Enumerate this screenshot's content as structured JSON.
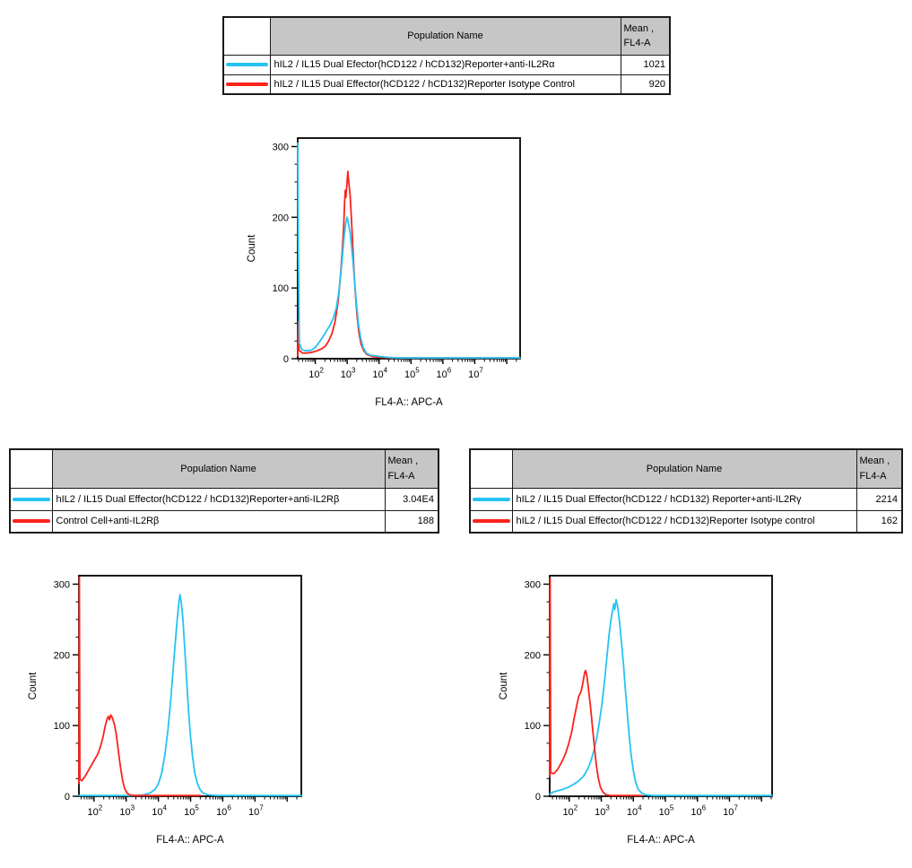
{
  "colors": {
    "cyan": "#25C3F3",
    "red": "#FA231B",
    "table_header_bg": "#C6C6C6",
    "border": "#1A1A1A",
    "axis": "#000000"
  },
  "tables": [
    {
      "id": "alpha",
      "header": {
        "name_col": "Population Name",
        "mean_line1": "Mean ,",
        "mean_line2": "FL4-A"
      },
      "rows": [
        {
          "color": "cyan",
          "name": "hIL2 / IL15 Dual Efector(hCD122 / hCD132)Reporter+anti-IL2Rα",
          "mean": "1021"
        },
        {
          "color": "red",
          "name": "hIL2 / IL15 Dual Effector(hCD122 / hCD132)Reporter Isotype Control",
          "mean": "920"
        }
      ]
    },
    {
      "id": "beta",
      "header": {
        "name_col": "Population Name",
        "mean_line1": "Mean ,",
        "mean_line2": "FL4-A"
      },
      "rows": [
        {
          "color": "cyan",
          "name": "hIL2 / IL15 Dual Effector(hCD122 / hCD132)Reporter+anti-IL2Rβ",
          "mean": "3.04E4"
        },
        {
          "color": "red",
          "name": "Control Cell+anti-IL2Rβ",
          "mean": "188"
        }
      ]
    },
    {
      "id": "gamma",
      "header": {
        "name_col": "Population Name",
        "mean_line1": "Mean ,",
        "mean_line2": "FL4-A"
      },
      "rows": [
        {
          "color": "cyan",
          "name": "hIL2 / IL15 Dual Effector(hCD122 / hCD132) Reporter+anti-IL2Rγ",
          "mean": "2214"
        },
        {
          "color": "red",
          "name": "hIL2 / IL15 Dual Effector(hCD122 / hCD132)Reporter Isotype control",
          "mean": "162"
        }
      ]
    }
  ],
  "chart_data": [
    {
      "id": "histogram-anti-IL2Ra",
      "type": "line",
      "title": "",
      "xlabel": "FL4-A:: APC-A",
      "ylabel": "Count",
      "x_scale": "log10",
      "xlim_log10": [
        1.45,
        8.42
      ],
      "ylim": [
        0,
        312
      ],
      "y_ticks": [
        0,
        100,
        200,
        300
      ],
      "y_minor_step": 25,
      "x_labeled_decades": [
        2,
        3,
        4,
        5,
        6,
        7
      ],
      "grid": false,
      "legend_position": "none",
      "series": [
        {
          "name": "hIL2 / IL15 Dual Effector(hCD122 / hCD132)Reporter Isotype Control",
          "color": "red",
          "mean_fl4a": "920",
          "points_log10x_count": [
            [
              1.45,
              4
            ],
            [
              1.47,
              52
            ],
            [
              1.49,
              12
            ],
            [
              1.6,
              8
            ],
            [
              1.75,
              8
            ],
            [
              1.9,
              9
            ],
            [
              2.05,
              11
            ],
            [
              2.2,
              14
            ],
            [
              2.32,
              18
            ],
            [
              2.42,
              25
            ],
            [
              2.52,
              35
            ],
            [
              2.62,
              52
            ],
            [
              2.72,
              82
            ],
            [
              2.79,
              118
            ],
            [
              2.85,
              155
            ],
            [
              2.89,
              185
            ],
            [
              2.92,
              222
            ],
            [
              2.94,
              238
            ],
            [
              2.96,
              228
            ],
            [
              2.99,
              246
            ],
            [
              3.02,
              265
            ],
            [
              3.05,
              250
            ],
            [
              3.09,
              232
            ],
            [
              3.13,
              200
            ],
            [
              3.17,
              165
            ],
            [
              3.21,
              128
            ],
            [
              3.26,
              90
            ],
            [
              3.31,
              60
            ],
            [
              3.37,
              36
            ],
            [
              3.44,
              20
            ],
            [
              3.52,
              11
            ],
            [
              3.62,
              6
            ],
            [
              3.78,
              3
            ],
            [
              4.0,
              2
            ],
            [
              4.4,
              1
            ],
            [
              8.42,
              1
            ]
          ]
        },
        {
          "name": "hIL2 / IL15 Dual Efector(hCD122 / hCD132)Reporter+anti-IL2Rα",
          "color": "cyan",
          "mean_fl4a": "1021",
          "points_log10x_count": [
            [
              1.45,
              305
            ],
            [
              1.47,
              160
            ],
            [
              1.5,
              22
            ],
            [
              1.58,
              13
            ],
            [
              1.72,
              11
            ],
            [
              1.88,
              12
            ],
            [
              2.0,
              16
            ],
            [
              2.12,
              23
            ],
            [
              2.24,
              31
            ],
            [
              2.36,
              40
            ],
            [
              2.47,
              48
            ],
            [
              2.57,
              58
            ],
            [
              2.66,
              72
            ],
            [
              2.74,
              95
            ],
            [
              2.8,
              120
            ],
            [
              2.86,
              150
            ],
            [
              2.91,
              175
            ],
            [
              2.96,
              193
            ],
            [
              3.0,
              200
            ],
            [
              3.04,
              191
            ],
            [
              3.09,
              178
            ],
            [
              3.13,
              162
            ],
            [
              3.18,
              138
            ],
            [
              3.23,
              110
            ],
            [
              3.29,
              78
            ],
            [
              3.35,
              50
            ],
            [
              3.42,
              30
            ],
            [
              3.5,
              16
            ],
            [
              3.6,
              8
            ],
            [
              3.72,
              5
            ],
            [
              3.88,
              4
            ],
            [
              4.05,
              3
            ],
            [
              4.25,
              2
            ],
            [
              4.55,
              1
            ],
            [
              8.42,
              1
            ]
          ]
        }
      ]
    },
    {
      "id": "histogram-anti-IL2Rb",
      "type": "line",
      "title": "",
      "xlabel": "FL4-A:: APC-A",
      "ylabel": "Count",
      "x_scale": "log10",
      "xlim_log10": [
        1.53,
        8.44
      ],
      "ylim": [
        0,
        312
      ],
      "y_ticks": [
        0,
        100,
        200,
        300
      ],
      "y_minor_step": 25,
      "x_labeled_decades": [
        2,
        3,
        4,
        5,
        6,
        7
      ],
      "grid": false,
      "legend_position": "none",
      "series": [
        {
          "name": "hIL2 / IL15 Dual Effector(hCD122 / hCD132)Reporter+anti-IL2Rβ",
          "color": "cyan",
          "mean_fl4a": "3.04E4",
          "points_log10x_count": [
            [
              1.53,
              1
            ],
            [
              3.35,
              1
            ],
            [
              3.55,
              2
            ],
            [
              3.75,
              5
            ],
            [
              3.9,
              10
            ],
            [
              4.0,
              18
            ],
            [
              4.1,
              32
            ],
            [
              4.2,
              58
            ],
            [
              4.3,
              95
            ],
            [
              4.38,
              135
            ],
            [
              4.45,
              175
            ],
            [
              4.52,
              215
            ],
            [
              4.58,
              248
            ],
            [
              4.63,
              272
            ],
            [
              4.67,
              285
            ],
            [
              4.71,
              275
            ],
            [
              4.76,
              252
            ],
            [
              4.81,
              215
            ],
            [
              4.87,
              170
            ],
            [
              4.93,
              125
            ],
            [
              4.99,
              88
            ],
            [
              5.06,
              56
            ],
            [
              5.13,
              33
            ],
            [
              5.21,
              18
            ],
            [
              5.3,
              9
            ],
            [
              5.4,
              4
            ],
            [
              5.55,
              2
            ],
            [
              5.8,
              1
            ],
            [
              8.44,
              1
            ]
          ]
        },
        {
          "name": "Control Cell+anti-IL2Rβ",
          "color": "red",
          "mean_fl4a": "188",
          "points_log10x_count": [
            [
              1.53,
              18
            ],
            [
              1.545,
              310
            ],
            [
              1.56,
              24
            ],
            [
              1.62,
              22
            ],
            [
              1.72,
              28
            ],
            [
              1.82,
              36
            ],
            [
              1.92,
              44
            ],
            [
              2.02,
              52
            ],
            [
              2.12,
              60
            ],
            [
              2.2,
              70
            ],
            [
              2.28,
              84
            ],
            [
              2.35,
              100
            ],
            [
              2.41,
              110
            ],
            [
              2.45,
              113
            ],
            [
              2.48,
              108
            ],
            [
              2.52,
              115
            ],
            [
              2.57,
              111
            ],
            [
              2.63,
              102
            ],
            [
              2.69,
              88
            ],
            [
              2.74,
              70
            ],
            [
              2.79,
              52
            ],
            [
              2.84,
              36
            ],
            [
              2.89,
              22
            ],
            [
              2.95,
              11
            ],
            [
              3.02,
              5
            ],
            [
              3.1,
              2
            ],
            [
              3.25,
              1
            ],
            [
              5.3,
              1
            ]
          ]
        }
      ]
    },
    {
      "id": "histogram-anti-IL2Rg",
      "type": "line",
      "title": "",
      "xlabel": "FL4-A:: APC-A",
      "ylabel": "Count",
      "x_scale": "log10",
      "xlim_log10": [
        1.39,
        8.33
      ],
      "ylim": [
        0,
        312
      ],
      "y_ticks": [
        0,
        100,
        200,
        300
      ],
      "y_minor_step": 25,
      "x_labeled_decades": [
        2,
        3,
        4,
        5,
        6,
        7
      ],
      "grid": false,
      "legend_position": "none",
      "series": [
        {
          "name": "hIL2 / IL15 Dual Effector(hCD122 / hCD132) Reporter+anti-IL2Rγ",
          "color": "cyan",
          "mean_fl4a": "2214",
          "points_log10x_count": [
            [
              1.39,
              3
            ],
            [
              1.5,
              6
            ],
            [
              1.65,
              8
            ],
            [
              1.82,
              10
            ],
            [
              1.98,
              13
            ],
            [
              2.14,
              17
            ],
            [
              2.3,
              22
            ],
            [
              2.44,
              28
            ],
            [
              2.56,
              37
            ],
            [
              2.66,
              48
            ],
            [
              2.76,
              63
            ],
            [
              2.86,
              83
            ],
            [
              2.94,
              105
            ],
            [
              3.02,
              130
            ],
            [
              3.1,
              162
            ],
            [
              3.18,
              200
            ],
            [
              3.25,
              232
            ],
            [
              3.31,
              252
            ],
            [
              3.36,
              265
            ],
            [
              3.39,
              272
            ],
            [
              3.42,
              264
            ],
            [
              3.46,
              278
            ],
            [
              3.51,
              268
            ],
            [
              3.57,
              246
            ],
            [
              3.63,
              218
            ],
            [
              3.69,
              188
            ],
            [
              3.75,
              152
            ],
            [
              3.81,
              118
            ],
            [
              3.87,
              86
            ],
            [
              3.93,
              58
            ],
            [
              4.0,
              36
            ],
            [
              4.07,
              20
            ],
            [
              4.15,
              10
            ],
            [
              4.25,
              5
            ],
            [
              4.38,
              2
            ],
            [
              4.6,
              1
            ],
            [
              8.33,
              1
            ]
          ]
        },
        {
          "name": "hIL2 / IL15 Dual Effector(hCD122 / hCD132)Reporter Isotype control",
          "color": "red",
          "mean_fl4a": "162",
          "points_log10x_count": [
            [
              1.39,
              28
            ],
            [
              1.405,
              308
            ],
            [
              1.42,
              33
            ],
            [
              1.52,
              32
            ],
            [
              1.64,
              38
            ],
            [
              1.76,
              48
            ],
            [
              1.88,
              60
            ],
            [
              1.98,
              74
            ],
            [
              2.08,
              92
            ],
            [
              2.16,
              112
            ],
            [
              2.24,
              130
            ],
            [
              2.3,
              142
            ],
            [
              2.34,
              145
            ],
            [
              2.38,
              150
            ],
            [
              2.43,
              162
            ],
            [
              2.48,
              175
            ],
            [
              2.51,
              178
            ],
            [
              2.55,
              170
            ],
            [
              2.6,
              152
            ],
            [
              2.66,
              128
            ],
            [
              2.72,
              100
            ],
            [
              2.78,
              72
            ],
            [
              2.84,
              46
            ],
            [
              2.9,
              27
            ],
            [
              2.97,
              13
            ],
            [
              3.05,
              6
            ],
            [
              3.15,
              2
            ],
            [
              3.3,
              1
            ],
            [
              4.25,
              1
            ]
          ]
        }
      ]
    }
  ]
}
